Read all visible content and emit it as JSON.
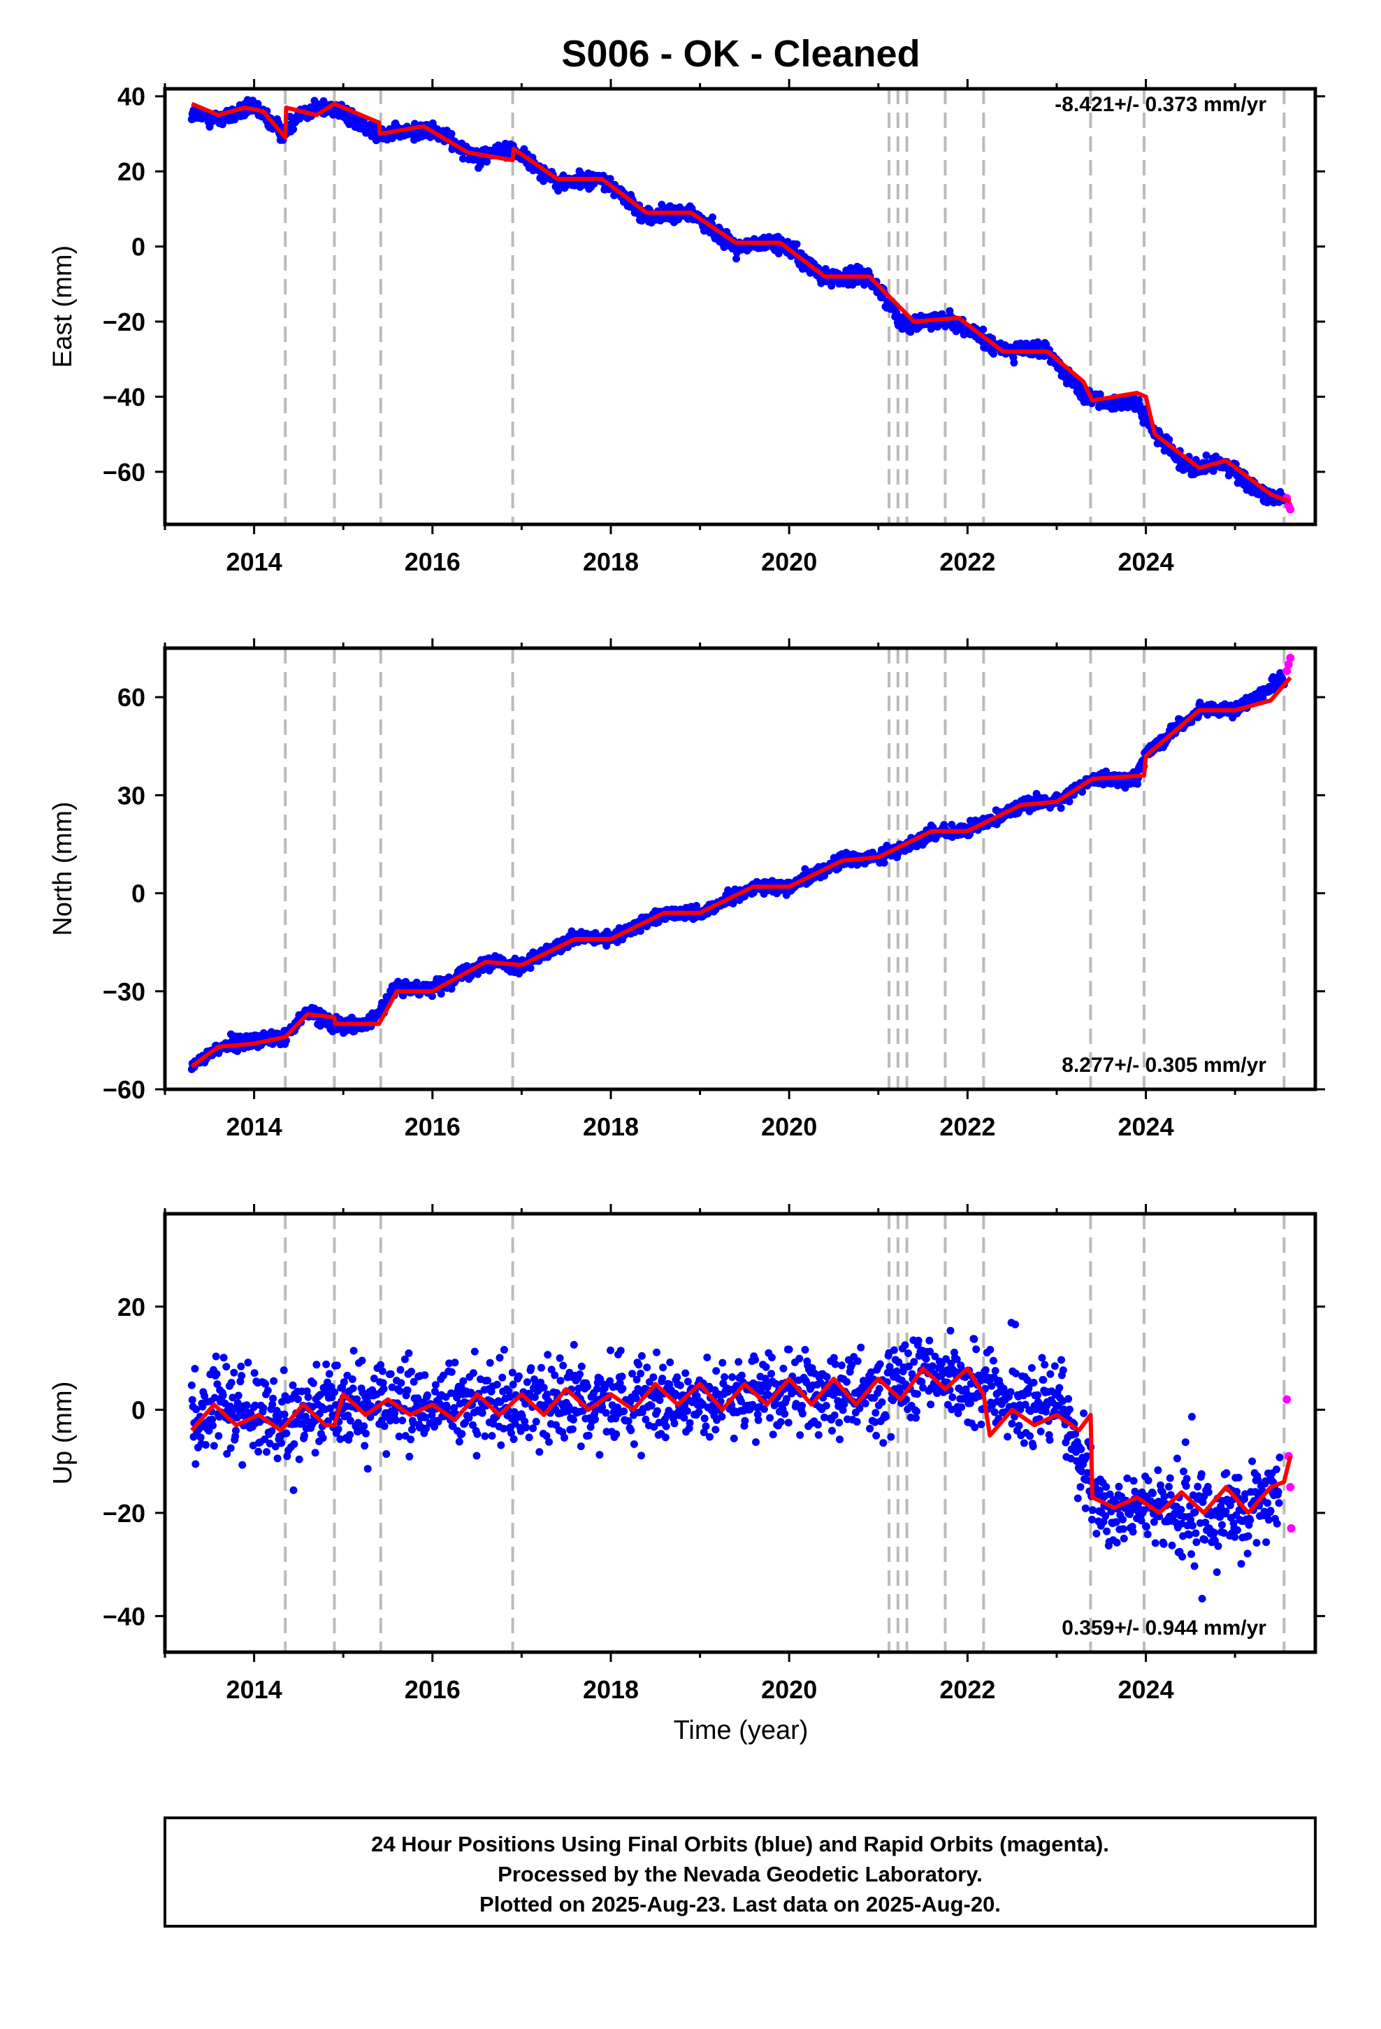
{
  "title": "S006  - OK - Cleaned",
  "xlabel": "Time (year)",
  "footer": [
    "24 Hour Positions Using Final Orbits (blue) and Rapid Orbits (magenta).",
    "Processed by the Nevada Geodetic Laboratory.",
    "Plotted on 2025-Aug-23. Last data on 2025-Aug-20."
  ],
  "colors": {
    "final_orbits": "#0000ff",
    "rapid_orbits": "#ff00ff",
    "model_fit": "#ff0000",
    "event_lines": "#bbbbbb",
    "frame": "#000000"
  },
  "chart_data": [
    {
      "type": "scatter",
      "panel": "east",
      "ylabel": "East (mm)",
      "rate_label": "-8.421+/- 0.373 mm/yr",
      "xlim": [
        2013.0,
        2025.9
      ],
      "ylim": [
        -74,
        42
      ],
      "xticks": [
        "2014",
        "2016",
        "2018",
        "2020",
        "2022",
        "2024"
      ],
      "yticks": [
        "40",
        "20",
        "0",
        "−20",
        "−40",
        "−60"
      ],
      "ytick_values": [
        40,
        20,
        0,
        -20,
        -40,
        -60
      ],
      "series": [
        {
          "name": "Final Orbits (blue)",
          "x": [
            2013.3,
            2013.6,
            2014.0,
            2014.35,
            2014.5,
            2014.9,
            2015.2,
            2015.5,
            2016.0,
            2016.5,
            2016.9,
            2017.4,
            2017.9,
            2018.4,
            2018.9,
            2019.4,
            2019.9,
            2020.4,
            2020.9,
            2021.3,
            2021.8,
            2022.3,
            2022.9,
            2023.3,
            2023.5,
            2023.9,
            2024.1,
            2024.5,
            2024.9,
            2025.3,
            2025.55
          ],
          "y": [
            35,
            34,
            37,
            30,
            36,
            37,
            32,
            30,
            31,
            24,
            26,
            17,
            18,
            8,
            9,
            0,
            1,
            -8,
            -8,
            -21,
            -19,
            -27,
            -28,
            -40,
            -41,
            -42,
            -50,
            -59,
            -58,
            -66,
            -68
          ]
        },
        {
          "name": "Rapid Orbits (magenta)",
          "x": [
            2025.58,
            2025.6,
            2025.62
          ],
          "y": [
            -67,
            -69,
            -70
          ]
        },
        {
          "name": "Model fit",
          "x": [
            2013.3,
            2013.6,
            2013.9,
            2014.1,
            2014.35,
            2014.36,
            2014.7,
            2014.9,
            2015.0,
            2015.4,
            2015.41,
            2015.9,
            2016.4,
            2016.9,
            2016.91,
            2017.4,
            2017.9,
            2018.4,
            2018.9,
            2019.4,
            2019.9,
            2020.4,
            2020.9,
            2021.4,
            2021.9,
            2022.4,
            2022.9,
            2023.3,
            2023.4,
            2023.9,
            2024.0,
            2024.1,
            2024.6,
            2024.9,
            2025.4,
            2025.62
          ],
          "y": [
            38,
            35,
            37,
            36,
            29,
            37,
            35,
            38,
            37,
            33,
            30,
            32,
            25,
            23,
            26,
            18,
            18,
            9,
            9,
            1,
            1,
            -8,
            -8,
            -20,
            -19,
            -28,
            -28,
            -36,
            -41,
            -39,
            -40,
            -50,
            -59,
            -57,
            -66,
            -68
          ]
        }
      ],
      "event_lines": [
        2014.35,
        2014.9,
        2015.42,
        2016.9,
        2021.12,
        2021.22,
        2021.32,
        2021.75,
        2022.18,
        2023.38,
        2023.98,
        2025.55
      ]
    },
    {
      "type": "scatter",
      "panel": "north",
      "ylabel": "North (mm)",
      "rate_label": "8.277+/- 0.305 mm/yr",
      "xlim": [
        2013.0,
        2025.9
      ],
      "ylim": [
        -60,
        75
      ],
      "xticks": [
        "2014",
        "2016",
        "2018",
        "2020",
        "2022",
        "2024"
      ],
      "yticks": [
        "60",
        "30",
        "0",
        "−30",
        "−60"
      ],
      "ytick_values": [
        60,
        30,
        0,
        -30,
        -60
      ],
      "series": [
        {
          "name": "Final Orbits (blue)",
          "x": [
            2013.3,
            2013.6,
            2014.0,
            2014.35,
            2014.6,
            2014.9,
            2015.3,
            2015.6,
            2016.0,
            2016.6,
            2017.0,
            2017.6,
            2018.0,
            2018.6,
            2019.0,
            2019.6,
            2020.0,
            2020.6,
            2021.0,
            2021.6,
            2022.0,
            2022.6,
            2023.0,
            2023.4,
            2023.9,
            2024.0,
            2024.6,
            2025.0,
            2025.55
          ],
          "y": [
            -53,
            -47,
            -45,
            -44,
            -36,
            -40,
            -40,
            -29,
            -29,
            -21,
            -22,
            -14,
            -14,
            -6,
            -6,
            2,
            2,
            10,
            11,
            18,
            19,
            27,
            28,
            35,
            35,
            43,
            56,
            56,
            66
          ]
        },
        {
          "name": "Rapid Orbits (magenta)",
          "x": [
            2025.58,
            2025.6,
            2025.62
          ],
          "y": [
            68,
            70,
            72
          ]
        },
        {
          "name": "Model fit",
          "x": [
            2013.3,
            2013.6,
            2014.0,
            2014.35,
            2014.6,
            2014.9,
            2014.91,
            2015.4,
            2015.6,
            2016.0,
            2016.6,
            2017.0,
            2017.6,
            2018.0,
            2018.6,
            2019.0,
            2019.6,
            2020.0,
            2020.6,
            2021.0,
            2021.6,
            2022.0,
            2022.6,
            2023.0,
            2023.4,
            2023.98,
            2024.0,
            2024.6,
            2025.0,
            2025.4,
            2025.62
          ],
          "y": [
            -53,
            -47,
            -46,
            -44,
            -37,
            -38,
            -40,
            -40,
            -30,
            -30,
            -21,
            -22,
            -14,
            -14,
            -6,
            -6,
            2,
            2,
            10,
            11,
            19,
            19,
            27,
            28,
            35,
            36,
            42,
            56,
            56,
            59,
            66
          ]
        }
      ],
      "event_lines": [
        2014.35,
        2014.9,
        2015.42,
        2016.9,
        2021.12,
        2021.22,
        2021.32,
        2021.75,
        2022.18,
        2023.38,
        2023.98,
        2025.55
      ]
    },
    {
      "type": "scatter",
      "panel": "up",
      "ylabel": "Up (mm)",
      "rate_label": "0.359+/- 0.944 mm/yr",
      "xlim": [
        2013.0,
        2025.9
      ],
      "ylim": [
        -47,
        38
      ],
      "xticks": [
        "2014",
        "2016",
        "2018",
        "2020",
        "2022",
        "2024"
      ],
      "yticks": [
        "20",
        "0",
        "−20",
        "−40"
      ],
      "ytick_values": [
        20,
        0,
        -20,
        -40
      ],
      "series": [
        {
          "name": "Final Orbits (blue)",
          "x": [
            2013.3,
            2013.6,
            2014.0,
            2014.35,
            2014.6,
            2015.0,
            2015.5,
            2016.0,
            2016.5,
            2017.0,
            2017.5,
            2018.0,
            2018.5,
            2019.0,
            2019.5,
            2020.0,
            2020.5,
            2021.0,
            2021.5,
            2021.8,
            2022.2,
            2022.6,
            2023.0,
            2023.5,
            2024.0,
            2024.5,
            2025.0,
            2025.5
          ],
          "y": [
            -2,
            1,
            0,
            -3,
            0,
            2,
            1,
            0,
            2,
            1,
            2,
            2,
            3,
            2,
            3,
            4,
            3,
            4,
            6,
            7,
            3,
            1,
            2,
            -20,
            -19,
            -20,
            -19,
            -17
          ]
        },
        {
          "name": "Rapid Orbits (magenta)",
          "x": [
            2025.58,
            2025.6,
            2025.62,
            2025.63
          ],
          "y": [
            2,
            -9,
            -15,
            -23
          ]
        },
        {
          "name": "Model fit",
          "x": [
            2013.3,
            2013.55,
            2013.8,
            2014.05,
            2014.3,
            2014.55,
            2014.8,
            2014.9,
            2015.0,
            2015.25,
            2015.5,
            2015.75,
            2016.0,
            2016.25,
            2016.5,
            2016.75,
            2017.0,
            2017.25,
            2017.5,
            2017.75,
            2018.0,
            2018.25,
            2018.5,
            2018.75,
            2019.0,
            2019.25,
            2019.5,
            2019.75,
            2020.0,
            2020.25,
            2020.5,
            2020.75,
            2021.0,
            2021.25,
            2021.5,
            2021.75,
            2022.0,
            2022.18,
            2022.25,
            2022.5,
            2022.75,
            2023.0,
            2023.25,
            2023.38,
            2023.4,
            2023.65,
            2023.9,
            2024.15,
            2024.4,
            2024.65,
            2024.9,
            2025.15,
            2025.4,
            2025.55,
            2025.62
          ],
          "y": [
            -4,
            1,
            -3,
            -1,
            -4,
            1,
            -3,
            -3,
            3,
            -1,
            2,
            -1,
            1,
            -2,
            3,
            -1,
            3,
            -1,
            4,
            0,
            3,
            0,
            5,
            1,
            5,
            0,
            5,
            1,
            6,
            1,
            6,
            1,
            6,
            2,
            8,
            4,
            8,
            3,
            -5,
            0,
            -3,
            -1,
            -4,
            -1,
            -17,
            -19,
            -17,
            -20,
            -16,
            -20,
            -15,
            -20,
            -15,
            -14,
            -9
          ]
        }
      ],
      "event_lines": [
        2014.35,
        2014.9,
        2015.42,
        2016.9,
        2021.12,
        2021.22,
        2021.32,
        2021.75,
        2022.18,
        2023.38,
        2023.98,
        2025.55
      ]
    }
  ]
}
